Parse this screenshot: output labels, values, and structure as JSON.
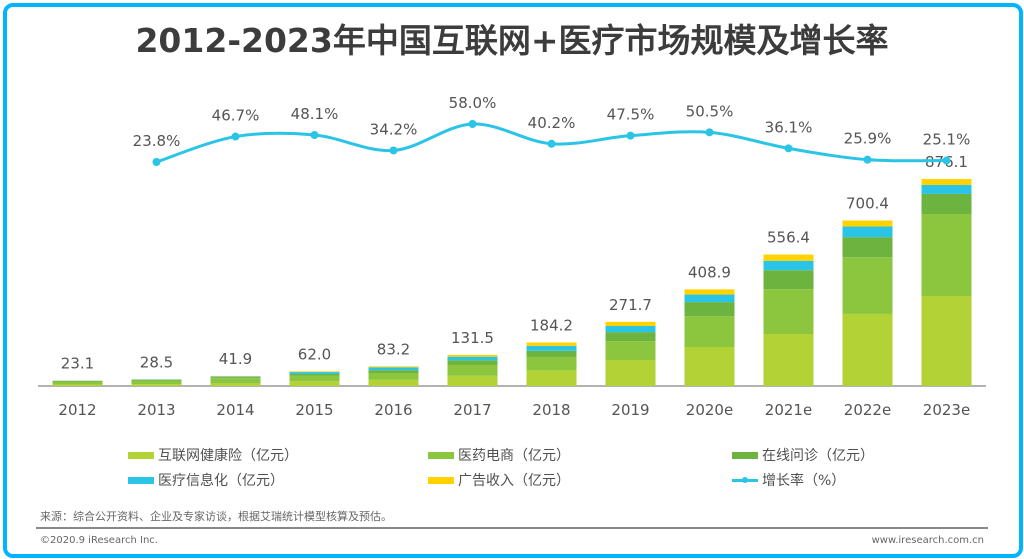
{
  "chart_data": {
    "type": "bar",
    "subtype": "stacked-bar-with-line",
    "title": "2012-2023年中国互联网+医疗市场规模及增长率",
    "categories": [
      "2012",
      "2013",
      "2014",
      "2015",
      "2016",
      "2017",
      "2018",
      "2019",
      "2020e",
      "2021e",
      "2022e",
      "2023e"
    ],
    "totals": [
      23.1,
      28.5,
      41.9,
      62.0,
      83.2,
      131.5,
      184.2,
      271.7,
      408.9,
      556.4,
      700.4,
      876.1
    ],
    "total_labels": [
      "23.1",
      "28.5",
      "41.9",
      "62.0",
      "83.2",
      "131.5",
      "184.2",
      "271.7",
      "408.9",
      "556.4",
      "700.4",
      "876.1"
    ],
    "series": [
      {
        "name": "互联网健康险（亿元）",
        "color": "#b2d235",
        "values": [
          6.0,
          7.5,
          11.0,
          20.0,
          26.0,
          43.0,
          66.0,
          110.0,
          165.0,
          220.0,
          305.0,
          381.0
        ]
      },
      {
        "name": "医药电商（亿元）",
        "color": "#8cc63f",
        "values": [
          13.0,
          15.5,
          22.0,
          23.0,
          29.0,
          46.0,
          57.0,
          80.0,
          130.0,
          190.0,
          240.0,
          347.0
        ]
      },
      {
        "name": "在线问诊（亿元）",
        "color": "#6cb33f",
        "values": [
          2.5,
          3.0,
          4.5,
          8.0,
          12.0,
          20.0,
          26.0,
          38.0,
          60.0,
          80.0,
          85.0,
          85.0
        ]
      },
      {
        "name": "医疗信息化（亿元）",
        "color": "#29c4e6",
        "values": [
          1.0,
          1.5,
          2.5,
          8.0,
          12.0,
          15.0,
          21.0,
          26.0,
          32.0,
          40.0,
          45.0,
          38.0
        ]
      },
      {
        "name": "广告收入（亿元）",
        "color": "#ffd200",
        "values": [
          0.6,
          1.0,
          1.9,
          3.0,
          4.2,
          7.5,
          14.2,
          17.7,
          21.9,
          26.4,
          25.4,
          25.1
        ]
      }
    ],
    "line": {
      "name": "增长率（%）",
      "color": "#29c4e6",
      "values": [
        23.8,
        46.7,
        48.1,
        34.2,
        58.0,
        40.2,
        47.5,
        50.5,
        36.1,
        25.9,
        25.1
      ],
      "labels": [
        "23.8%",
        "46.7%",
        "48.1%",
        "34.2%",
        "58.0%",
        "40.2%",
        "47.5%",
        "50.5%",
        "36.1%",
        "25.9%",
        "25.1%"
      ],
      "categories": [
        "2013",
        "2014",
        "2015",
        "2016",
        "2017",
        "2018",
        "2019",
        "2020e",
        "2021e",
        "2022e",
        "2023e"
      ]
    },
    "xlabel": "",
    "ylabel": "",
    "ylim": [
      0,
      900
    ],
    "grid": false,
    "legend_position": "bottom"
  },
  "legend": [
    {
      "label": "互联网健康险（亿元）",
      "color": "#b2d235",
      "kind": "bar"
    },
    {
      "label": "医药电商（亿元）",
      "color": "#8cc63f",
      "kind": "bar"
    },
    {
      "label": "在线问诊（亿元）",
      "color": "#6cb33f",
      "kind": "bar"
    },
    {
      "label": "医疗信息化（亿元）",
      "color": "#29c4e6",
      "kind": "bar"
    },
    {
      "label": "广告收入（亿元）",
      "color": "#ffd200",
      "kind": "bar"
    },
    {
      "label": "增长率（%）",
      "color": "#29c4e6",
      "kind": "line"
    }
  ],
  "footer": {
    "source": "来源：综合公开资料、企业及专家访谈，根据艾瑞统计模型核算及预估。",
    "copyright": "©2020.9 iResearch Inc.",
    "website": "www.iresearch.com.cn"
  },
  "frame_color": "#00b4ff"
}
